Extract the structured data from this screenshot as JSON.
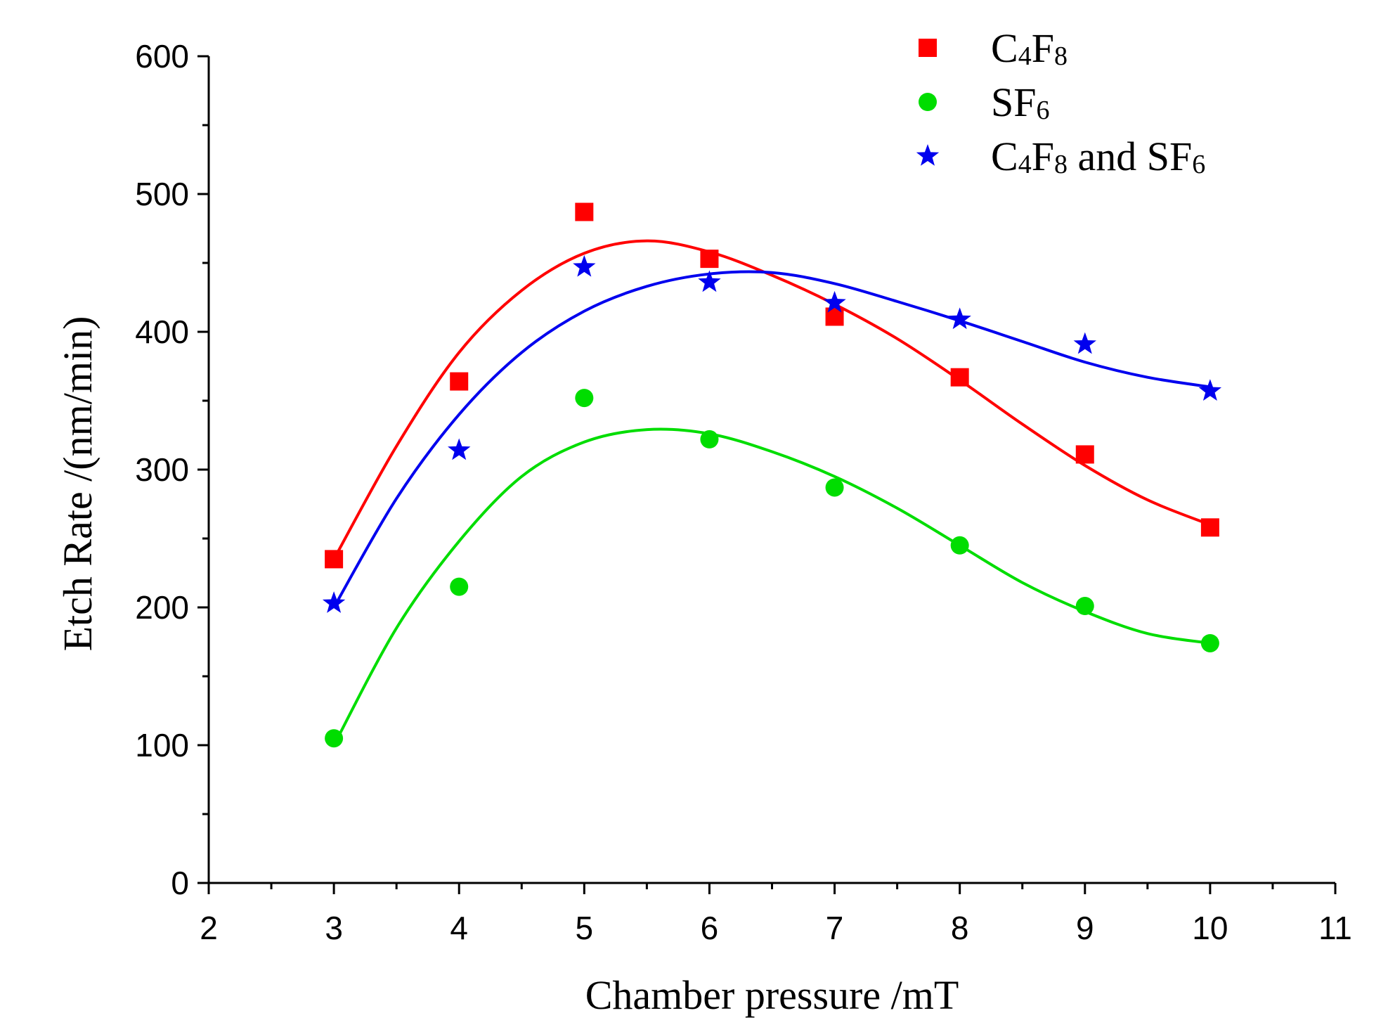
{
  "chart_data": {
    "type": "scatter",
    "title": "",
    "xlabel": "Chamber pressure /mT",
    "ylabel": "Etch Rate /(nm/min)",
    "xlim": [
      2,
      11
    ],
    "ylim": [
      0,
      600
    ],
    "xticks": [
      2,
      3,
      4,
      5,
      6,
      7,
      8,
      9,
      10,
      11
    ],
    "yticks": [
      0,
      100,
      200,
      300,
      400,
      500,
      600
    ],
    "grid": false,
    "legend_position": "top-right",
    "x": [
      3,
      4,
      5,
      6,
      7,
      8,
      9,
      10
    ],
    "series": [
      {
        "name": "C4F8",
        "legend_parts": [
          {
            "t": "C"
          },
          {
            "t": "4",
            "sub": true
          },
          {
            "t": "F"
          },
          {
            "t": "8",
            "sub": true
          }
        ],
        "marker": "square",
        "color": "#ff0000",
        "values": [
          235,
          364,
          487,
          453,
          411,
          367,
          311,
          258
        ],
        "fit": [
          [
            3,
            235
          ],
          [
            3.5,
            317
          ],
          [
            4,
            385
          ],
          [
            4.5,
            430
          ],
          [
            5,
            457
          ],
          [
            5.5,
            466
          ],
          [
            6,
            458
          ],
          [
            6.5,
            441
          ],
          [
            7,
            420
          ],
          [
            7.5,
            395
          ],
          [
            8,
            365
          ],
          [
            8.5,
            333
          ],
          [
            9,
            303
          ],
          [
            9.5,
            278
          ],
          [
            10,
            260
          ]
        ]
      },
      {
        "name": "SF6",
        "legend_parts": [
          {
            "t": "SF"
          },
          {
            "t": "6",
            "sub": true
          }
        ],
        "marker": "circle",
        "color": "#00dd00",
        "values": [
          105,
          215,
          352,
          322,
          287,
          245,
          201,
          174
        ],
        "fit": [
          [
            3,
            100
          ],
          [
            3.5,
            185
          ],
          [
            4,
            248
          ],
          [
            4.5,
            295
          ],
          [
            5,
            320
          ],
          [
            5.5,
            329
          ],
          [
            6,
            326
          ],
          [
            6.5,
            313
          ],
          [
            7,
            295
          ],
          [
            7.5,
            272
          ],
          [
            8,
            245
          ],
          [
            8.5,
            218
          ],
          [
            9,
            197
          ],
          [
            9.5,
            181
          ],
          [
            10,
            174
          ]
        ]
      },
      {
        "name": "C4F8 and SF6",
        "legend_parts": [
          {
            "t": "C"
          },
          {
            "t": "4",
            "sub": true
          },
          {
            "t": "F"
          },
          {
            "t": "8",
            "sub": true
          },
          {
            "t": " and SF"
          },
          {
            "t": "6",
            "sub": true
          }
        ],
        "marker": "star",
        "color": "#0000ee",
        "values": [
          203,
          314,
          447,
          436,
          421,
          409,
          391,
          357
        ],
        "fit": [
          [
            3,
            200
          ],
          [
            3.5,
            279
          ],
          [
            4,
            340
          ],
          [
            4.5,
            385
          ],
          [
            5,
            415
          ],
          [
            5.5,
            433
          ],
          [
            6,
            442
          ],
          [
            6.5,
            443
          ],
          [
            7,
            435
          ],
          [
            7.5,
            422
          ],
          [
            8,
            408
          ],
          [
            8.5,
            393
          ],
          [
            9,
            378
          ],
          [
            9.5,
            367
          ],
          [
            10,
            360
          ]
        ]
      }
    ]
  }
}
